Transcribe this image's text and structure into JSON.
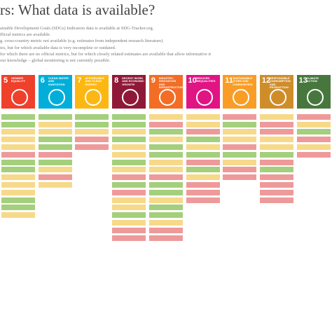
{
  "title": "rs: What data is available?",
  "description": [
    "ainable Development Goals (SDGs) Indicators data is available at SDG-Tracker.org.",
    "fficial metrics are available.",
    "g. cross-country metric not available (e.g. estimates from independent research literature).",
    "ies, but for which available data is very incomplete or outdated.",
    "for which there are no official metrics, but for which closely related estimates are available that allow informative tr",
    "our knowledge – global monitoring is not currently possible."
  ],
  "goals": [
    {
      "number": "5",
      "label": "GENDER EQUALITY",
      "color": "#ef402b",
      "cells": [
        "#a4cf7c",
        "#a4cf7c",
        "#f7d98a",
        "#f7d98a",
        "#f7d98a",
        "#ee9a9a",
        "#a4cf7c",
        "#a4cf7c",
        "#f7d98a",
        "#f7d98a",
        "#f7d98a",
        "#a4cf7c",
        "#a4cf7c",
        "#f7d98a"
      ]
    },
    {
      "number": "6",
      "label": "CLEAN WATER AND SANITATION",
      "color": "#00aed9",
      "cells": [
        "#a4cf7c",
        "#f7d98a",
        "#f7d98a",
        "#a4cf7c",
        "#a4cf7c",
        "#ee9a9a",
        "#a4cf7c",
        "#f7d98a",
        "#ee9a9a",
        "#f7d98a"
      ]
    },
    {
      "number": "7",
      "label": "AFFORDABLE AND CLEAN ENERGY",
      "color": "#fdb713",
      "cells": [
        "#a4cf7c",
        "#a4cf7c",
        "#f7d98a",
        "#ee9a9a",
        "#ee9a9a"
      ]
    },
    {
      "number": "8",
      "label": "DECENT WORK AND ECONOMIC GROWTH",
      "color": "#8f1838",
      "cells": [
        "#a4cf7c",
        "#a4cf7c",
        "#f7d98a",
        "#a4cf7c",
        "#f7d98a",
        "#f7d98a",
        "#a4cf7c",
        "#f7d98a",
        "#ee9a9a",
        "#a4cf7c",
        "#ee9a9a",
        "#f7d98a",
        "#f7d98a",
        "#a4cf7c",
        "#f7d98a",
        "#ee9a9a",
        "#ee9a9a"
      ]
    },
    {
      "number": "9",
      "label": "INDUSTRY, INNOVATION AND INFRASTRUCTURE",
      "color": "#f36d25",
      "cells": [
        "#f7d98a",
        "#ee9a9a",
        "#a4cf7c",
        "#f7d98a",
        "#a4cf7c",
        "#a4cf7c",
        "#f7d98a",
        "#f7d98a",
        "#ee9a9a",
        "#a4cf7c",
        "#a4cf7c",
        "#f7d98a",
        "#a4cf7c",
        "#a4cf7c",
        "#f7d98a",
        "#ee9a9a",
        "#ee9a9a"
      ]
    },
    {
      "number": "10",
      "label": "REDUCED INEQUALITIES",
      "color": "#e11484",
      "cells": [
        "#f7d98a",
        "#f7d98a",
        "#ee9a9a",
        "#a4cf7c",
        "#f7d98a",
        "#a4cf7c",
        "#ee9a9a",
        "#a4cf7c",
        "#f7d98a",
        "#ee9a9a",
        "#ee9a9a",
        "#ee9a9a"
      ]
    },
    {
      "number": "11",
      "label": "SUSTAINABLE CITIES AND COMMUNITIES",
      "color": "#f99d26",
      "cells": [
        "#ee9a9a",
        "#a4cf7c",
        "#f7d98a",
        "#f7d98a",
        "#ee9a9a",
        "#a4cf7c",
        "#f7d98a",
        "#ee9a9a",
        "#ee9a9a"
      ]
    },
    {
      "number": "12",
      "label": "RESPONSIBLE CONSUMPTION AND PRODUCTION",
      "color": "#cf8d2a",
      "cells": [
        "#f7d98a",
        "#ee9a9a",
        "#ee9a9a",
        "#f7d98a",
        "#f7d98a",
        "#a4cf7c",
        "#ee9a9a",
        "#a4cf7c",
        "#ee9a9a",
        "#ee9a9a",
        "#ee9a9a",
        "#ee9a9a"
      ]
    },
    {
      "number": "13",
      "label": "CLIMATE ACTION",
      "color": "#48773e",
      "cells": [
        "#ee9a9a",
        "#f7d98a",
        "#a4cf7c",
        "#ee9a9a",
        "#f7d98a",
        "#ee9a9a"
      ]
    }
  ]
}
